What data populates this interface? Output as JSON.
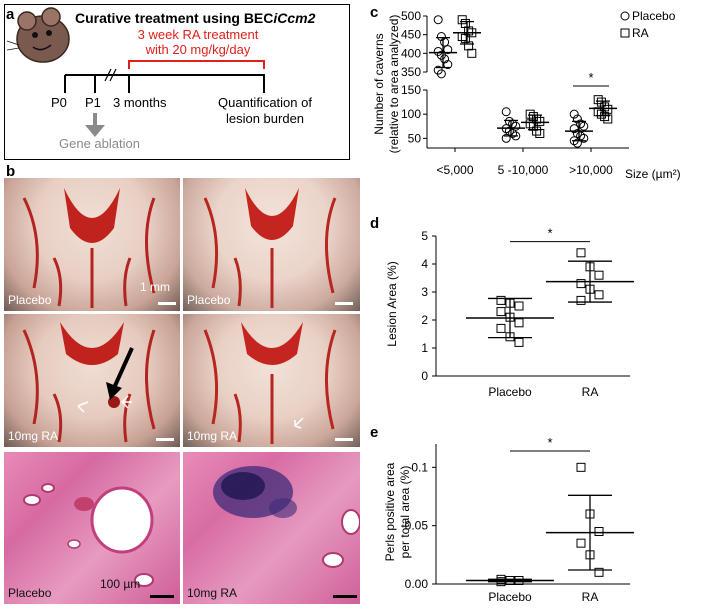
{
  "panel_a": {
    "letter": "a",
    "title_prefix": "Curative treatment using BEC",
    "title_italic": "iCcm2",
    "treatment_line1": "3 week RA treatment",
    "treatment_line2": "with 20 mg/kg/day",
    "p0": "P0",
    "p1": "P1",
    "three_months": "3 months",
    "quant_line1": "Quantification of",
    "quant_line2": "lesion burden",
    "gene_ablation": "Gene ablation",
    "colors": {
      "treatment": "#e0201b",
      "ablation": "#8a8a8a"
    }
  },
  "panel_b": {
    "letter": "b",
    "photo_labels": [
      "Placebo",
      "Placebo",
      "10mg RA",
      "10mg RA",
      "Placebo",
      "10mg RA"
    ],
    "scale_mm": "1 mm",
    "scale_um": "100 µm"
  },
  "panel_c": {
    "letter": "c",
    "ylabel_line1": "Number of caverns",
    "ylabel_line2": "(relative to area analyzed)",
    "xlabel": "Size (µm²)",
    "legend": [
      "Placebo",
      "RA"
    ],
    "significance": "*"
  },
  "panel_d": {
    "letter": "d",
    "ylabel": "Lesion Area (%)",
    "significance": "*"
  },
  "panel_e": {
    "letter": "e",
    "ylabel_line1": "Perls positive area",
    "ylabel_line2": "per total area (%)",
    "significance": "*"
  },
  "chart_data": [
    {
      "type": "scatter",
      "panel": "c",
      "categories": [
        "<5,000",
        "5 -10,000",
        ">10,000"
      ],
      "yaxis_break": true,
      "y_upper_ticks": [
        350,
        400,
        450,
        500
      ],
      "y_lower_ticks": [
        50,
        100,
        150
      ],
      "series": [
        {
          "name": "Placebo",
          "values": [
            [
              490,
              445,
              430,
              410,
              405,
              395,
              385,
              370,
              355,
              345
            ],
            [
              105,
              85,
              80,
              75,
              70,
              65,
              60,
              55,
              50
            ],
            [
              100,
              90,
              80,
              75,
              70,
              60,
              55,
              50,
              45,
              40
            ]
          ],
          "means": [
            402,
            71,
            65
          ],
          "sd": [
            40,
            16,
            20
          ]
        },
        {
          "name": "RA",
          "values": [
            [
              490,
              480,
              460,
              455,
              445,
              440,
              420,
              400
            ],
            [
              100,
              95,
              90,
              85,
              80,
              75,
              65,
              60
            ],
            [
              130,
              125,
              115,
              110,
              105,
              100,
              95,
              90
            ]
          ],
          "means": [
            455,
            83,
            112
          ],
          "sd": [
            30,
            15,
            15
          ]
        }
      ],
      "annotation": {
        "text": "*",
        "category": ">10,000"
      }
    },
    {
      "type": "scatter",
      "panel": "d",
      "categories": [
        "Placebo",
        "RA"
      ],
      "ylim": [
        0,
        5
      ],
      "yticks": [
        0,
        1,
        2,
        3,
        4,
        5
      ],
      "series": [
        {
          "name": "Placebo",
          "values": [
            2.7,
            2.6,
            2.5,
            2.3,
            2.1,
            1.9,
            1.7,
            1.4,
            1.2
          ],
          "mean": 2.07,
          "sd": 0.7
        },
        {
          "name": "RA",
          "values": [
            4.4,
            3.9,
            3.6,
            3.3,
            3.1,
            2.9,
            2.7
          ],
          "mean": 3.37,
          "sd": 0.73
        }
      ],
      "annotation": {
        "text": "*"
      }
    },
    {
      "type": "scatter",
      "panel": "e",
      "categories": [
        "Placebo",
        "RA"
      ],
      "ylim": [
        0,
        0.12
      ],
      "yticks": [
        0.0,
        0.05,
        0.1
      ],
      "ytick_labels": [
        "0.00",
        "0.05",
        "0.1"
      ],
      "series": [
        {
          "name": "Placebo",
          "values": [
            0.004,
            0.003,
            0.003,
            0.002
          ],
          "mean": 0.003,
          "sd": 0.001
        },
        {
          "name": "RA",
          "values": [
            0.1,
            0.06,
            0.045,
            0.035,
            0.025,
            0.01
          ],
          "mean": 0.044,
          "sd": 0.032
        }
      ],
      "annotation": {
        "text": "*"
      }
    }
  ]
}
